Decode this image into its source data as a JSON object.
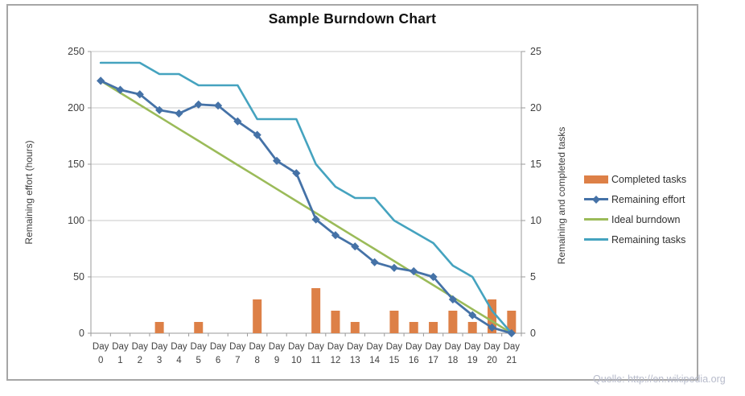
{
  "title": "Sample Burndown Chart",
  "source_note": "Quelle: http://en.wikipedia.org",
  "colors": {
    "completed_bar": "#DD8047",
    "remaining_effort": "#4572A7",
    "ideal_burndown": "#9BBB59",
    "remaining_tasks": "#45A3BF",
    "gridline": "#C9C9C9",
    "axis_line": "#9A9A9A",
    "frame_border": "#A6A6A6",
    "tick_label": "#3F3F3F",
    "source_text": "#B7BBCB"
  },
  "left_axis": {
    "label": "Remaining effort (hours)",
    "min": 0,
    "max": 250,
    "ticks": [
      0,
      50,
      100,
      150,
      200,
      250
    ]
  },
  "right_axis": {
    "label": "Remaining and completed tasks",
    "min": 0,
    "max": 25,
    "ticks": [
      0,
      5,
      10,
      15,
      20,
      25
    ]
  },
  "legend": {
    "items": [
      {
        "label": "Completed tasks",
        "type": "bar",
        "color_key": "completed_bar"
      },
      {
        "label": "Remaining effort",
        "type": "line-diamond",
        "color_key": "remaining_effort"
      },
      {
        "label": "Ideal burndown",
        "type": "line",
        "color_key": "ideal_burndown"
      },
      {
        "label": "Remaining tasks",
        "type": "line",
        "color_key": "remaining_tasks"
      }
    ]
  },
  "chart_data": {
    "type": "combo-bar-line",
    "title": "Sample Burndown Chart",
    "xlabel": "",
    "ylabel_left": "Remaining effort (hours)",
    "ylabel_right": "Remaining and completed tasks",
    "ylim_left": [
      0,
      250
    ],
    "ylim_right": [
      0,
      25
    ],
    "grid": true,
    "legend_position": "right",
    "categories": [
      "Day 0",
      "Day 1",
      "Day 2",
      "Day 3",
      "Day 4",
      "Day 5",
      "Day 6",
      "Day 7",
      "Day 8",
      "Day 9",
      "Day 10",
      "Day 11",
      "Day 12",
      "Day 13",
      "Day 14",
      "Day 15",
      "Day 16",
      "Day 17",
      "Day 18",
      "Day 19",
      "Day 20",
      "Day 21"
    ],
    "series": [
      {
        "name": "Completed tasks",
        "type": "bar",
        "axis": "right",
        "values": [
          0,
          0,
          0,
          1,
          0,
          1,
          0,
          0,
          3,
          0,
          0,
          4,
          2,
          1,
          0,
          2,
          1,
          1,
          2,
          1,
          3,
          2
        ]
      },
      {
        "name": "Remaining effort",
        "type": "line",
        "axis": "left",
        "marker": "diamond",
        "values": [
          224,
          216,
          212,
          198,
          195,
          203,
          202,
          188,
          176,
          153,
          142,
          101,
          87,
          77,
          63,
          58,
          55,
          50,
          30,
          16,
          5,
          0
        ]
      },
      {
        "name": "Ideal burndown",
        "type": "line",
        "axis": "left",
        "values": [
          224,
          213.3,
          202.7,
          192,
          181.3,
          170.7,
          160,
          149.3,
          138.7,
          128,
          117.3,
          106.7,
          96,
          85.3,
          74.7,
          64,
          53.3,
          42.7,
          32,
          21.3,
          10.7,
          0
        ]
      },
      {
        "name": "Remaining tasks",
        "type": "line",
        "axis": "right",
        "values": [
          24,
          24,
          24,
          23,
          23,
          22,
          22,
          22,
          19,
          19,
          19,
          15,
          13,
          12,
          12,
          10,
          9,
          8,
          6,
          5,
          2,
          0
        ]
      }
    ]
  }
}
